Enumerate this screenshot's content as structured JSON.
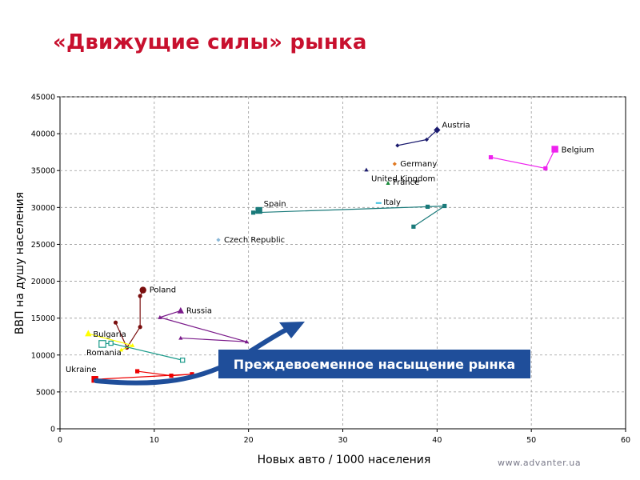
{
  "slide": {
    "title": "«Движущие силы» рынка",
    "watermark": "www.advanter.ua"
  },
  "callout": {
    "text": "Преждевоеменное насыщение рынка",
    "color": "#1f4e9a"
  },
  "chart_data": {
    "type": "scatter",
    "xlabel": "Новых авто / 1000 населения",
    "ylabel": "ВВП на душу населения",
    "xlim": [
      0,
      60
    ],
    "ylim": [
      0,
      45000
    ],
    "xticks": [
      0,
      10,
      20,
      30,
      40,
      50,
      60
    ],
    "yticks": [
      0,
      5000,
      10000,
      15000,
      20000,
      25000,
      30000,
      35000,
      40000,
      45000
    ],
    "grid": "horizontal and vertical dashed",
    "legend": "none (series labelled next to points)",
    "series": [
      {
        "name": "Austria",
        "color": "#1a1a6e",
        "marker": "diamond",
        "points": [
          [
            35.8,
            38400
          ],
          [
            38.9,
            39200
          ],
          [
            40.0,
            40500
          ]
        ],
        "last_marker_size": "large"
      },
      {
        "name": "Belgium",
        "color": "#ee22ee",
        "marker": "square",
        "points": [
          [
            45.7,
            36800
          ],
          [
            51.5,
            35300
          ],
          [
            52.5,
            37900
          ]
        ],
        "last_marker_size": "large"
      },
      {
        "name": "Germany",
        "color": "#e07820",
        "marker": "diamond",
        "points": [
          [
            35.5,
            35900
          ]
        ]
      },
      {
        "name": "United Kingdom",
        "color": "#1a1a6e",
        "marker": "triangle",
        "points": [
          [
            32.5,
            35100
          ]
        ]
      },
      {
        "name": "France",
        "color": "#1a8a3a",
        "marker": "triangle",
        "points": [
          [
            34.8,
            33300
          ]
        ]
      },
      {
        "name": "Italy",
        "color": "#40c0e0",
        "marker": "dash",
        "points": [
          [
            33.8,
            30600
          ]
        ]
      },
      {
        "name": "Spain",
        "color": "#1a7a7a",
        "marker": "square",
        "points": [
          [
            37.5,
            27400
          ],
          [
            40.8,
            30200
          ],
          [
            39.0,
            30100
          ],
          [
            20.5,
            29300
          ],
          [
            21.1,
            29600
          ]
        ],
        "last_marker_size": "large"
      },
      {
        "name": "Czech Republic",
        "color": "#8ab8d8",
        "marker": "diamond",
        "points": [
          [
            16.8,
            25600
          ]
        ]
      },
      {
        "name": "Poland",
        "color": "#7a0e0e",
        "marker": "circle",
        "points": [
          [
            5.9,
            14400
          ],
          [
            7.1,
            11000
          ],
          [
            8.5,
            13800
          ],
          [
            8.5,
            18000
          ],
          [
            8.8,
            18800
          ]
        ],
        "last_marker_size": "large"
      },
      {
        "name": "Russia",
        "color": "#7a1a8a",
        "marker": "triangle",
        "points": [
          [
            12.8,
            12300
          ],
          [
            19.8,
            11800
          ],
          [
            10.6,
            15100
          ],
          [
            12.8,
            16000
          ]
        ],
        "last_marker_size": "large"
      },
      {
        "name": "Bulgaria",
        "color": "#ffff00",
        "marker": "triangle",
        "points": [
          [
            6.5,
            10700
          ],
          [
            7.7,
            11300
          ],
          [
            3.0,
            12900
          ]
        ],
        "last_marker_size": "large"
      },
      {
        "name": "Romania",
        "color": "#1a9a8a",
        "marker": "square-open",
        "points": [
          [
            13.0,
            9300
          ],
          [
            5.4,
            11600
          ],
          [
            4.5,
            11500
          ]
        ],
        "last_marker_size": "large"
      },
      {
        "name": "Ukraine",
        "color": "#ee0000",
        "marker": "square",
        "points": [
          [
            8.2,
            7800
          ],
          [
            11.8,
            7200
          ],
          [
            14.0,
            7400
          ],
          [
            3.7,
            6700
          ]
        ],
        "last_marker_size": "large"
      }
    ]
  }
}
